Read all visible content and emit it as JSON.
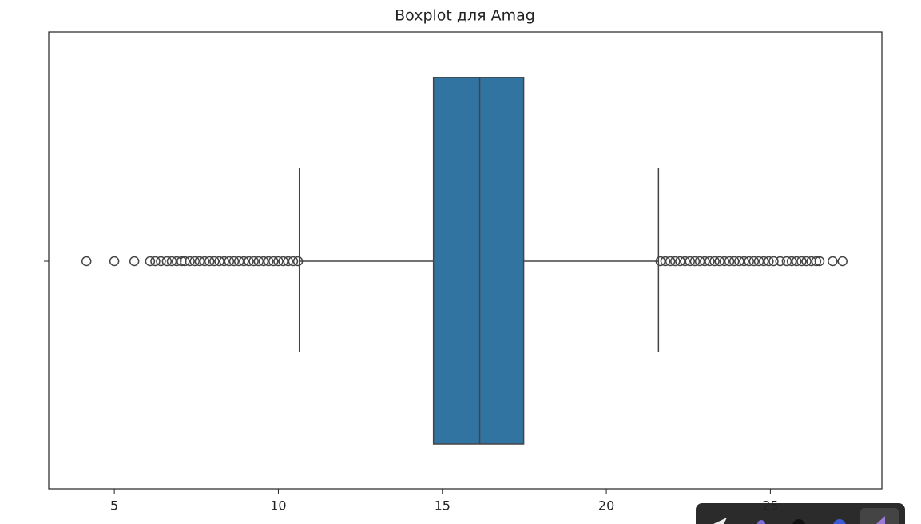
{
  "chart_data": {
    "type": "box",
    "title": "Boxplot для Amag",
    "color": "#3274a1",
    "values": {
      "whisker_low": 10.64,
      "q1": 14.73,
      "median": 16.14,
      "q3": 17.48,
      "whisker_high": 21.59,
      "outliers": [
        4.15,
        5.0,
        5.61,
        6.09,
        6.25,
        6.42,
        6.6,
        6.75,
        6.9,
        7.05,
        7.15,
        7.3,
        7.45,
        7.6,
        7.75,
        7.9,
        8.05,
        8.2,
        8.35,
        8.5,
        8.65,
        8.8,
        8.95,
        9.1,
        9.25,
        9.4,
        9.55,
        9.7,
        9.85,
        10.0,
        10.15,
        10.3,
        10.45,
        10.6,
        21.65,
        21.8,
        21.95,
        22.1,
        22.25,
        22.4,
        22.55,
        22.7,
        22.85,
        23.0,
        23.15,
        23.3,
        23.45,
        23.6,
        23.75,
        23.9,
        24.05,
        24.2,
        24.35,
        24.5,
        24.65,
        24.8,
        24.95,
        25.1,
        25.3,
        25.5,
        25.65,
        25.8,
        25.95,
        26.1,
        26.25,
        26.4,
        26.5,
        26.9,
        27.2
      ]
    },
    "xlim": [
      3.0,
      28.4
    ],
    "xticks": [
      5,
      10,
      15,
      20,
      25
    ]
  }
}
